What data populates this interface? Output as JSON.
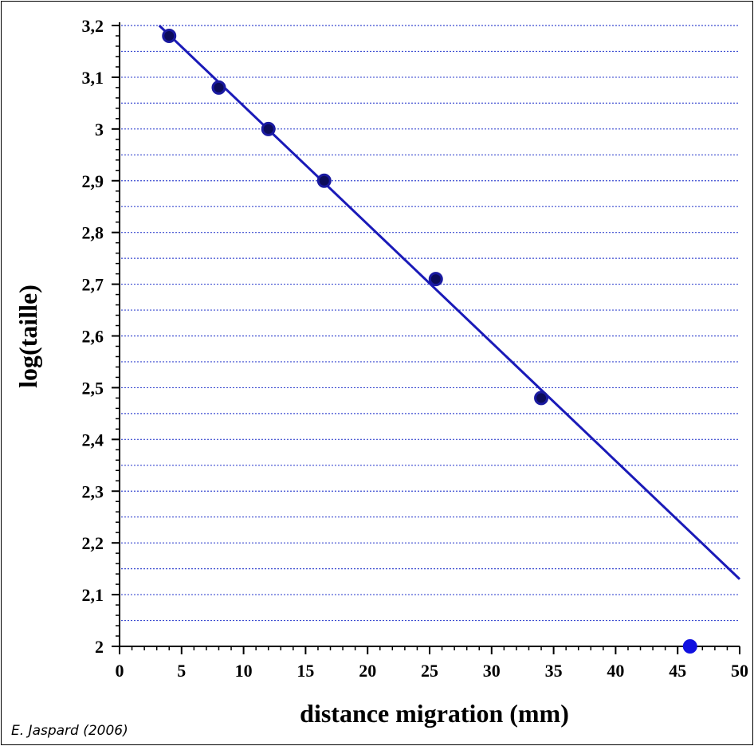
{
  "chart_data": {
    "type": "scatter",
    "xlabel": "distance migration (mm)",
    "ylabel": "log(taille)",
    "xlim": [
      0,
      50
    ],
    "ylim": [
      2,
      3.2
    ],
    "x_ticks": [
      "0",
      "5",
      "10",
      "15",
      "20",
      "25",
      "30",
      "35",
      "40",
      "45",
      "50"
    ],
    "y_ticks": [
      "2",
      "2,1",
      "2,2",
      "2,3",
      "2,4",
      "2,5",
      "2,6",
      "2,7",
      "2,8",
      "2,9",
      "3",
      "3,1",
      "3,2"
    ],
    "grid": "horizontal dotted lines",
    "series": [
      {
        "points": [
          {
            "x": 4,
            "y": 3.18
          },
          {
            "x": 8,
            "y": 3.08
          },
          {
            "x": 12,
            "y": 3.0
          },
          {
            "x": 16.5,
            "y": 2.9
          },
          {
            "x": 25.5,
            "y": 2.71
          },
          {
            "x": 34,
            "y": 2.48
          }
        ],
        "color": "#1a1aa0"
      },
      {
        "points": [
          {
            "x": 46,
            "y": 2.0
          }
        ],
        "color": "#1010e0"
      }
    ],
    "fit_line": {
      "x_start": 3.2,
      "y_start": 3.2,
      "x_end": 50,
      "y_end": 2.13,
      "color": "#1a1ab8"
    }
  },
  "credit": "E. Jaspard (2006)"
}
